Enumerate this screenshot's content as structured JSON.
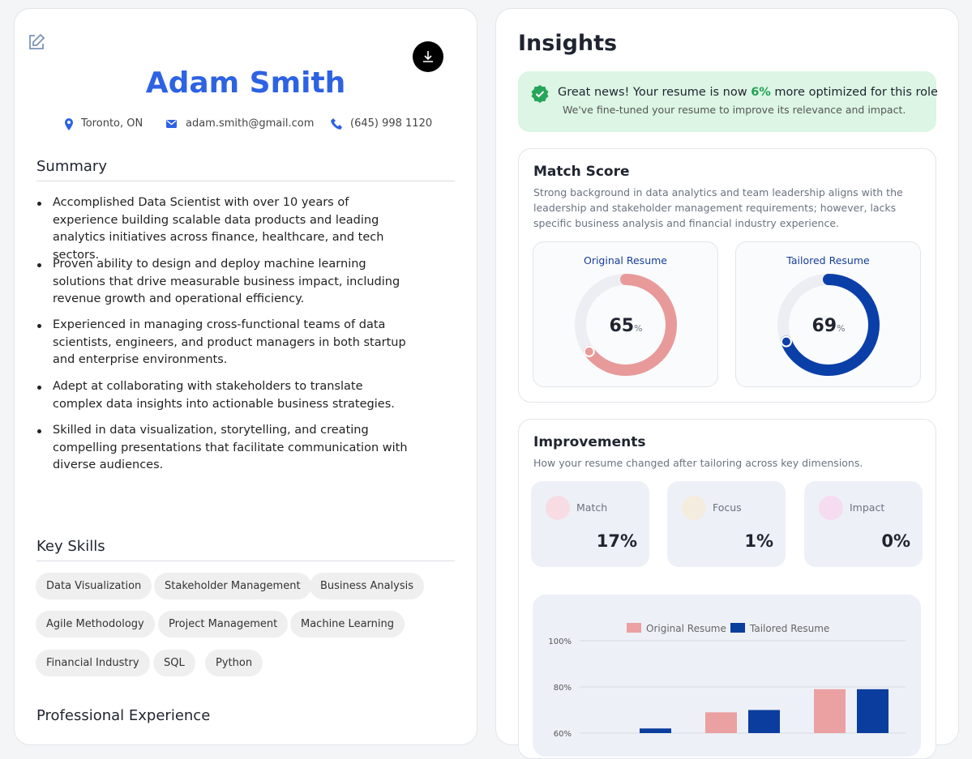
{
  "resume": {
    "name": "Adam Smith",
    "contact": {
      "location": "Toronto, ON",
      "email": "adam.smith@gmail.com",
      "phone": "(645) 998 1120"
    },
    "summary": {
      "title": "Summary",
      "items": [
        "Accomplished Data Scientist with over 10 years of experience building scalable data products and leading analytics initiatives across finance, healthcare, and tech sectors.",
        "Proven ability to design and deploy machine learning solutions that drive measurable business impact, including revenue growth and operational efficiency.",
        "Experienced in managing cross-functional teams of data scientists, engineers, and product managers in both startup and enterprise environments.",
        "Adept at collaborating with stakeholders to translate complex data insights into actionable business strategies.",
        "Skilled in data visualization, storytelling, and creating compelling presentations that facilitate communication with diverse audiences."
      ]
    },
    "skills": {
      "title": "Key Skills",
      "rows": [
        [
          "Data Visualization",
          "Stakeholder Management",
          "Business Analysis"
        ],
        [
          "Agile Methodology",
          "Project Management",
          "Machine Learning"
        ],
        [
          "Financial Industry",
          "SQL",
          "Python"
        ]
      ]
    },
    "experience": {
      "title": "Professional Experience"
    }
  },
  "insights": {
    "title": "Insights",
    "banner": {
      "text_before": "Great news! Your resume is now",
      "highlight": "6%",
      "text_after": "more optimized for this role",
      "subtitle": "We've fine-tuned your resume to improve its relevance and impact."
    },
    "match_score": {
      "title": "Match Score",
      "description": "Strong background in data analytics and team leadership aligns with the leadership and stakeholder management requirements; however, lacks specific business analysis and financial industry experience.",
      "gauges": [
        {
          "label": "Original Resume",
          "value": 65,
          "unit": "%",
          "color": "#e89a9a"
        },
        {
          "label": "Tailored Resume",
          "value": 69,
          "unit": "%",
          "color": "#0b3fa8"
        }
      ]
    },
    "improvements": {
      "title": "Improvements",
      "subtitle": "How your resume changed after tailoring across key dimensions.",
      "cards": [
        {
          "label": "Match",
          "value": "17%"
        },
        {
          "label": "Focus",
          "value": "1%"
        },
        {
          "label": "Impact",
          "value": "0%"
        }
      ]
    }
  },
  "chart_data": {
    "type": "bar",
    "categories": [
      null,
      null,
      null
    ],
    "series": [
      {
        "name": "Original Resume",
        "color": "#eba1a1",
        "values": [
          60,
          69,
          79
        ]
      },
      {
        "name": "Tailored Resume",
        "color": "#0a3d9e",
        "values": [
          62,
          70,
          79
        ]
      }
    ],
    "ylim": [
      60,
      100
    ],
    "yticks": [
      {
        "value": 60,
        "label": "60%"
      },
      {
        "value": 80,
        "label": "80%"
      },
      {
        "value": 100,
        "label": "100%"
      }
    ],
    "grid": true,
    "legend": "top"
  }
}
